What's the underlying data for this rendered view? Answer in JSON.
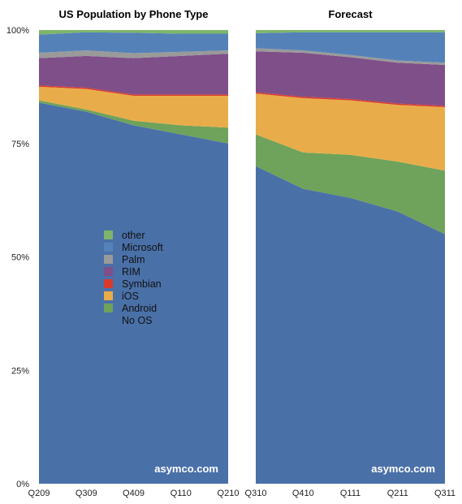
{
  "chart_data": {
    "type": "area",
    "stacked": true,
    "y_tick_labels": [
      "0%",
      "25%",
      "50%",
      "75%",
      "100%"
    ],
    "ylim": [
      0,
      100
    ],
    "colors": {
      "No OS": "#4a70a8",
      "Android": "#6fa25a",
      "iOS": "#e8ad4a",
      "Symbian": "#d93a2e",
      "RIM": "#7f4f89",
      "Palm": "#9a9a9a",
      "Microsoft": "#5482b8",
      "other": "#7fb56a"
    },
    "legend": {
      "placement": "center-left",
      "items": [
        {
          "label": "other",
          "color": "#7fb56a"
        },
        {
          "label": "Microsoft",
          "color": "#5482b8"
        },
        {
          "label": "Palm",
          "color": "#9a9a9a"
        },
        {
          "label": "RIM",
          "color": "#7f4f89"
        },
        {
          "label": "Symbian",
          "color": "#d93a2e"
        },
        {
          "label": "iOS",
          "color": "#e8ad4a"
        },
        {
          "label": "Android",
          "color": "#6fa25a"
        },
        {
          "label": "No OS",
          "color": null
        }
      ]
    },
    "panels": [
      {
        "title": "US Population by Phone Type",
        "watermark": "asymco.com",
        "categories": [
          "Q209",
          "Q309",
          "Q409",
          "Q110",
          "Q210"
        ],
        "series": [
          {
            "name": "No OS",
            "values": [
              84,
              82,
              79,
              77,
              75
            ]
          },
          {
            "name": "Android",
            "values": [
              0.5,
              0.5,
              1,
              2,
              3.5
            ]
          },
          {
            "name": "iOS",
            "values": [
              3,
              4.5,
              5.5,
              6.5,
              7
            ]
          },
          {
            "name": "Symbian",
            "values": [
              0.3,
              0.3,
              0.3,
              0.3,
              0.3
            ]
          },
          {
            "name": "RIM",
            "values": [
              6,
              7,
              8,
              8.5,
              9
            ]
          },
          {
            "name": "Palm",
            "values": [
              1.2,
              1.2,
              1.1,
              0.9,
              0.7
            ]
          },
          {
            "name": "Microsoft",
            "values": [
              4,
              4,
              4.5,
              4,
              3.7
            ]
          },
          {
            "name": "other",
            "values": [
              1,
              0.5,
              0.6,
              0.8,
              0.8
            ]
          }
        ]
      },
      {
        "title": "Forecast",
        "watermark": "asymco.com",
        "categories": [
          "Q310",
          "Q410",
          "Q111",
          "Q211",
          "Q311"
        ],
        "series": [
          {
            "name": "No OS",
            "values": [
              70,
              65,
              63,
              60,
              55
            ]
          },
          {
            "name": "Android",
            "values": [
              7,
              8,
              9.5,
              11,
              14
            ]
          },
          {
            "name": "iOS",
            "values": [
              9,
              12,
              12,
              12.5,
              14
            ]
          },
          {
            "name": "Symbian",
            "values": [
              0.3,
              0.3,
              0.3,
              0.3,
              0.3
            ]
          },
          {
            "name": "RIM",
            "values": [
              9,
              9.7,
              9.2,
              9,
              9
            ]
          },
          {
            "name": "Palm",
            "values": [
              0.7,
              0.5,
              0.5,
              0.5,
              0.5
            ]
          },
          {
            "name": "Microsoft",
            "values": [
              3.3,
              4,
              5,
              6.2,
              6.7
            ]
          },
          {
            "name": "other",
            "values": [
              0.7,
              0.5,
              0.5,
              0.5,
              0.5
            ]
          }
        ]
      }
    ]
  }
}
